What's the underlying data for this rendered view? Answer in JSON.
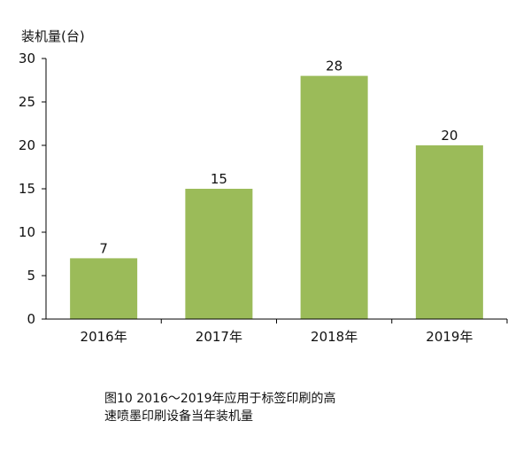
{
  "chart_data": {
    "type": "bar",
    "ylabel": "装机量(台)",
    "categories": [
      "2016年",
      "2017年",
      "2018年",
      "2019年"
    ],
    "values": [
      7,
      15,
      28,
      20
    ],
    "data_labels": [
      "7",
      "15",
      "28",
      "20"
    ],
    "ylim": [
      0,
      30
    ],
    "yticks": [
      0,
      5,
      10,
      15,
      20,
      25,
      30
    ],
    "grid": false,
    "legend": "none",
    "bar_color": "#9bbb59"
  },
  "caption": {
    "line1": "图10  2016～2019年应用于标签印刷的高",
    "line2": "速喷墨印刷设备当年装机量"
  }
}
